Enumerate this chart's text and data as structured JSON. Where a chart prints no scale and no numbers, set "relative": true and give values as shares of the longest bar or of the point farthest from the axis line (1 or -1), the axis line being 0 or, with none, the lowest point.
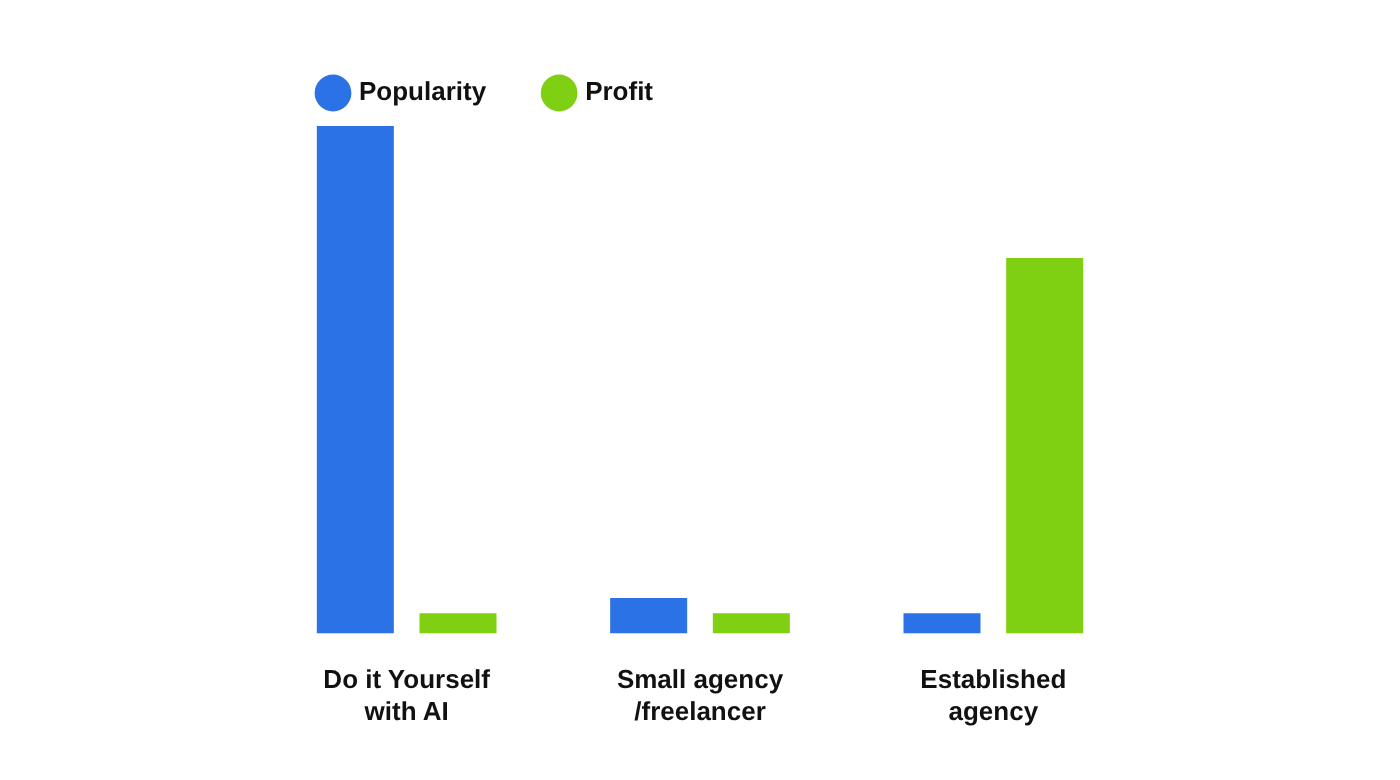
{
  "chart_data": {
    "type": "bar",
    "relative": true,
    "categories": [
      "Do it Yourself with AI",
      "Small agency /freelancer",
      "Established agency"
    ],
    "series": [
      {
        "name": "Popularity",
        "color": "#2a72e6",
        "values": [
          1,
          0.07,
          0.04
        ]
      },
      {
        "name": "Profit",
        "color": "#7fcf13",
        "values": [
          0.04,
          0.04,
          0.74
        ]
      }
    ],
    "legend": "top left",
    "grid": false
  }
}
